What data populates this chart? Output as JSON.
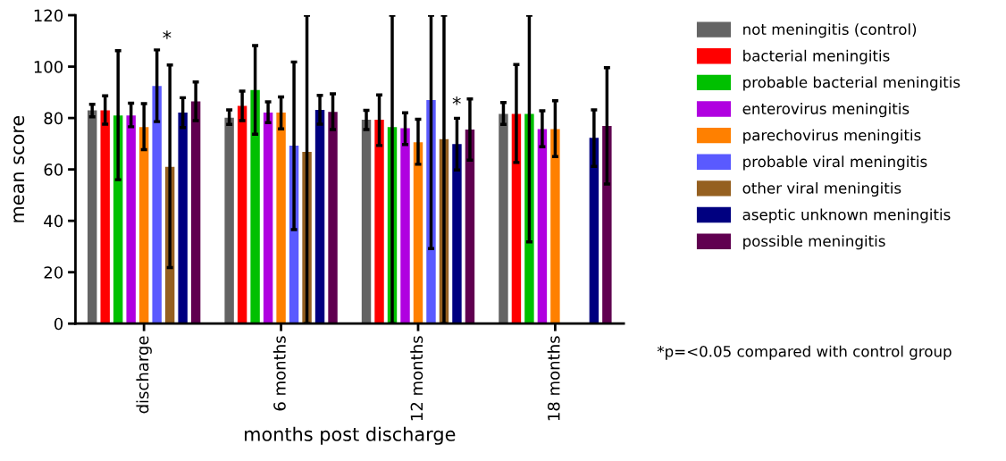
{
  "chart_data": {
    "type": "bar",
    "xlabel": "months post discharge",
    "ylabel": "mean score",
    "categories": [
      "discharge",
      "6 months",
      "12 months",
      "18 months"
    ],
    "ylim": [
      0,
      120
    ],
    "yticks": [
      0,
      20,
      40,
      60,
      80,
      100,
      120
    ],
    "grid": false,
    "legend": "right",
    "series": [
      {
        "name": "not meningitis (control)",
        "color": "#646464",
        "values": [
          83,
          80.1,
          79.3,
          81.6
        ],
        "errors": [
          [
            80.5,
            85.3
          ],
          [
            77.5,
            83.2
          ],
          [
            75.5,
            83
          ],
          [
            77.5,
            86
          ]
        ]
      },
      {
        "name": "bacterial meningitis",
        "color": "#ff0000",
        "values": [
          83,
          84.7,
          79.3,
          81.6
        ],
        "errors": [
          [
            77.6,
            88.6
          ],
          [
            79,
            90.5
          ],
          [
            69.3,
            89
          ],
          [
            62.7,
            100.8
          ]
        ]
      },
      {
        "name": "probable bacterial meningitis",
        "color": "#00c000",
        "values": [
          81,
          90.9,
          76.5,
          81.6
        ],
        "errors": [
          [
            56,
            106.2
          ],
          [
            73.7,
            108.2
          ],
          [
            0,
            120
          ],
          [
            31.8,
            120
          ]
        ]
      },
      {
        "name": "enterovirus meningitis",
        "color": "#b000e0",
        "values": [
          81,
          82.1,
          76,
          75.7
        ],
        "errors": [
          [
            76.6,
            85.8
          ],
          [
            78.2,
            86.3
          ],
          [
            69.7,
            82
          ],
          [
            68.8,
            82.8
          ]
        ]
      },
      {
        "name": "parechovirus meningitis",
        "color": "#ff8000",
        "values": [
          76.5,
          82.1,
          70.6,
          75.7
        ],
        "errors": [
          [
            67.7,
            85.6
          ],
          [
            75.8,
            88.2
          ],
          [
            62,
            79.5
          ],
          [
            65,
            86.7
          ]
        ]
      },
      {
        "name": "probable viral meningitis",
        "color": "#5a5aff",
        "values": [
          92.5,
          69.3,
          87,
          null
        ],
        "errors": [
          [
            78.6,
            106.5
          ],
          [
            36.6,
            101.8
          ],
          [
            29.2,
            120
          ],
          null
        ]
      },
      {
        "name": "other viral meningitis",
        "color": "#956020",
        "values": [
          61,
          66.8,
          71.8,
          null
        ],
        "errors": [
          [
            21.8,
            100.6
          ],
          [
            0,
            120
          ],
          [
            0,
            120
          ],
          null
        ]
      },
      {
        "name": "aseptic unknown meningitis",
        "color": "#000080",
        "values": [
          82.1,
          83.2,
          69.9,
          72.3
        ],
        "errors": [
          [
            76.3,
            87.9
          ],
          [
            77.6,
            88.8
          ],
          [
            59.8,
            79.9
          ],
          [
            61.2,
            83.2
          ]
        ]
      },
      {
        "name": "possible meningitis",
        "color": "#600050",
        "values": [
          86.5,
          82.4,
          75.5,
          76.9
        ],
        "errors": [
          [
            79,
            94
          ],
          [
            75.5,
            89.4
          ],
          [
            63.6,
            87.4
          ],
          [
            54.3,
            99.6
          ]
        ]
      }
    ],
    "annotations": [
      "*",
      "*",
      "*p=<0.05 compared with control group"
    ]
  }
}
